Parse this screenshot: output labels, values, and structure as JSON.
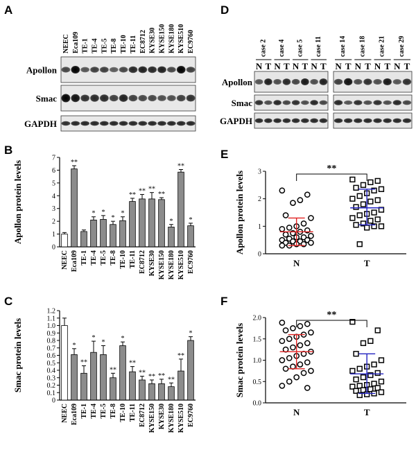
{
  "panels": {
    "A": {
      "letter": "A",
      "lanes": [
        "NEEC",
        "Eca109",
        "TE-1",
        "TE-4",
        "TE-5",
        "TE-8",
        "TE-10",
        "TE-11",
        "EC8712",
        "KYSE30",
        "KYSE150",
        "KYSE180",
        "KYSE510",
        "EC9760"
      ],
      "rows": [
        "Apollon",
        "Smac",
        "GAPDH"
      ]
    },
    "D": {
      "letter": "D",
      "cases": [
        "case 2",
        "case 4",
        "case 5",
        "case 11",
        "case 14",
        "case 18",
        "case 21",
        "case 29"
      ],
      "nt": [
        "N",
        "T"
      ],
      "rows": [
        "Apollon",
        "Smac",
        "GAPDH"
      ]
    },
    "B": {
      "letter": "B",
      "ylabel": "Apollon protein levels",
      "yticks": [
        "0",
        "1",
        "2",
        "3",
        "4",
        "5",
        "6",
        "7"
      ],
      "categories": [
        "NEEC",
        "Eca109",
        "TE-1",
        "TE-4",
        "TE-5",
        "TE-8",
        "TE-10",
        "TE-11",
        "EC8712",
        "KYSE30",
        "KYSE150",
        "KYSE180",
        "KYSE510",
        "EC9760"
      ]
    },
    "C": {
      "letter": "C",
      "ylabel": "Smac protein levels",
      "yticks": [
        "0",
        "0.1",
        "0.2",
        "0.3",
        "0.4",
        "0.5",
        "0.6",
        "0.7",
        "0.8",
        "0.9",
        "1.0",
        "1.1",
        "1.2"
      ],
      "categories": [
        "NEEC",
        "Eca109",
        "TE-1",
        "TE-4",
        "TE-5",
        "TE-8",
        "TE-10",
        "TE-11",
        "EC8712",
        "KYSE150",
        "KYSE30",
        "KYSE180",
        "KYSE510",
        "EC9760"
      ]
    },
    "E": {
      "letter": "E",
      "ylabel": "Apollon protein levels",
      "yticks": [
        "0",
        "1",
        "2",
        "3"
      ],
      "xcats": [
        "N",
        "T"
      ],
      "sig": "**"
    },
    "F": {
      "letter": "F",
      "ylabel": "Smac protein levels",
      "yticks": [
        "0.0",
        "0.5",
        "1.0",
        "1.5",
        "2.0"
      ],
      "xcats": [
        "N",
        "T"
      ],
      "sig": "**"
    }
  },
  "colors": {
    "bar_control": "#ffffff",
    "bar": "#8c8c8c",
    "mean_N": "#e02020",
    "mean_T": "#2020c0"
  },
  "chart_data": [
    {
      "type": "bar",
      "panel": "B",
      "categories": [
        "NEEC",
        "Eca109",
        "TE-1",
        "TE-4",
        "TE-5",
        "TE-8",
        "TE-10",
        "TE-11",
        "EC8712",
        "KYSE30",
        "KYSE150",
        "KYSE180",
        "KYSE510",
        "EC9760"
      ],
      "values": [
        1.0,
        6.1,
        1.2,
        2.1,
        2.15,
        1.75,
        2.05,
        3.55,
        3.75,
        3.75,
        3.7,
        1.55,
        5.85,
        1.65
      ],
      "errors": [
        0.12,
        0.25,
        0.12,
        0.25,
        0.3,
        0.25,
        0.3,
        0.25,
        0.35,
        0.5,
        0.15,
        0.2,
        0.2,
        0.2
      ],
      "annotations": [
        "",
        "**",
        "",
        "*",
        "*",
        "*",
        "*",
        "**",
        "**",
        "**",
        "**",
        "*",
        "**",
        "*"
      ],
      "ylabel": "Apollon protein levels",
      "ylim": [
        0,
        7
      ]
    },
    {
      "type": "bar",
      "panel": "C",
      "categories": [
        "NEEC",
        "Eca109",
        "TE-1",
        "TE-4",
        "TE-5",
        "TE-8",
        "TE-10",
        "TE-11",
        "EC8712",
        "KYSE150",
        "KYSE30",
        "KYSE180",
        "KYSE510",
        "EC9760"
      ],
      "values": [
        1.0,
        0.61,
        0.36,
        0.64,
        0.61,
        0.3,
        0.73,
        0.38,
        0.27,
        0.22,
        0.22,
        0.18,
        0.39,
        0.8
      ],
      "errors": [
        0.1,
        0.08,
        0.1,
        0.15,
        0.12,
        0.06,
        0.05,
        0.07,
        0.05,
        0.05,
        0.06,
        0.05,
        0.16,
        0.05
      ],
      "annotations": [
        "",
        "*",
        "**",
        "*",
        "*",
        "**",
        "*",
        "**",
        "**",
        "**",
        "**",
        "**",
        "**",
        "*"
      ],
      "ylabel": "Smac protein levels",
      "ylim": [
        0,
        1.2
      ]
    },
    {
      "type": "scatter",
      "panel": "E",
      "ylabel": "Apollon protein levels",
      "ylim": [
        0,
        3
      ],
      "groups": [
        {
          "name": "N",
          "marker": "circle",
          "mean": 0.8,
          "sd_low": 0.3,
          "sd_high": 1.3,
          "values": [
            2.3,
            2.15,
            1.95,
            1.85,
            1.4,
            1.3,
            1.1,
            1.0,
            0.95,
            0.9,
            0.85,
            0.8,
            0.75,
            0.7,
            0.65,
            0.6,
            0.6,
            0.55,
            0.5,
            0.5,
            0.45,
            0.45,
            0.4,
            0.4,
            0.35,
            0.35,
            0.3,
            0.3
          ]
        },
        {
          "name": "T",
          "marker": "square",
          "mean": 1.67,
          "sd_low": 1.05,
          "sd_high": 2.35,
          "values": [
            2.7,
            2.65,
            2.6,
            2.5,
            2.4,
            2.35,
            2.3,
            2.2,
            2.1,
            2.0,
            1.95,
            1.9,
            1.8,
            1.7,
            1.6,
            1.5,
            1.45,
            1.4,
            1.3,
            1.25,
            1.2,
            1.1,
            1.05,
            1.0,
            1.0,
            0.95,
            0.35
          ]
        }
      ]
    },
    {
      "type": "scatter",
      "panel": "F",
      "ylabel": "Smac protein levels",
      "ylim": [
        0,
        2.0
      ],
      "groups": [
        {
          "name": "N",
          "marker": "circle",
          "mean": 1.2,
          "sd_low": 0.8,
          "sd_high": 1.6,
          "values": [
            1.88,
            1.85,
            1.8,
            1.75,
            1.7,
            1.65,
            1.6,
            1.55,
            1.5,
            1.45,
            1.4,
            1.35,
            1.3,
            1.25,
            1.2,
            1.15,
            1.1,
            1.05,
            1.0,
            0.95,
            0.9,
            0.85,
            0.8,
            0.75,
            0.7,
            0.6,
            0.5,
            0.4,
            0.35
          ]
        },
        {
          "name": "T",
          "marker": "square",
          "mean": 0.68,
          "sd_low": 0.22,
          "sd_high": 1.15,
          "values": [
            1.9,
            1.7,
            1.45,
            1.4,
            1.15,
            1.0,
            0.9,
            0.85,
            0.8,
            0.75,
            0.7,
            0.65,
            0.6,
            0.55,
            0.5,
            0.45,
            0.42,
            0.4,
            0.38,
            0.35,
            0.32,
            0.3,
            0.28,
            0.25,
            0.22,
            0.2,
            0.18
          ]
        }
      ]
    }
  ]
}
